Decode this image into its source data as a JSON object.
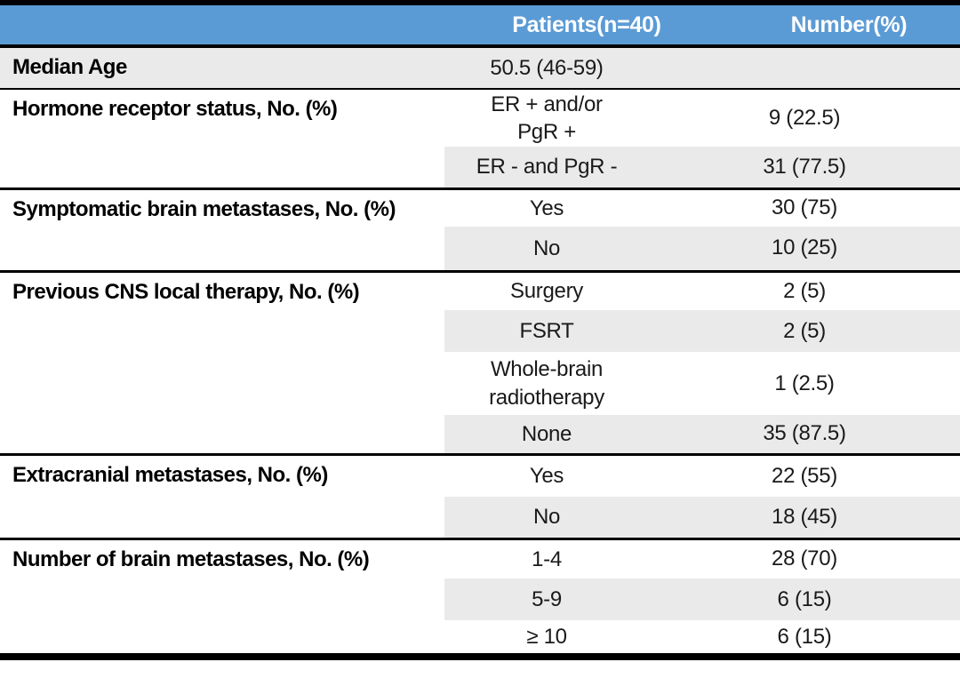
{
  "table": {
    "header": {
      "col1": "",
      "col2": "Patients(n=40)",
      "col3": "Number(%)"
    },
    "colors": {
      "header_bg": "#5B9BD5",
      "header_text": "#FFFFFF",
      "shade_bg": "#EAEAEA",
      "border": "#000000",
      "text": "#1A1A1A"
    },
    "sections": [
      {
        "label": "Median Age",
        "rows": [
          {
            "value": "50.5 (46-59)",
            "number": "",
            "shaded": true
          }
        ]
      },
      {
        "label": "Hormone receptor status, No. (%)",
        "rows": [
          {
            "value": "ER + and/or\nPgR +",
            "number": "9 (22.5)",
            "shaded": false
          },
          {
            "value": "ER - and PgR -",
            "number": "31 (77.5)",
            "shaded": true
          }
        ]
      },
      {
        "label": "Symptomatic brain metastases, No. (%)",
        "rows": [
          {
            "value": "Yes",
            "number": "30 (75)",
            "shaded": false
          },
          {
            "value": "No",
            "number": "10 (25)",
            "shaded": true
          }
        ]
      },
      {
        "label": "Previous CNS local therapy, No. (%)",
        "rows": [
          {
            "value": "Surgery",
            "number": "2 (5)",
            "shaded": false
          },
          {
            "value": "FSRT",
            "number": "2 (5)",
            "shaded": true
          },
          {
            "value": "Whole-brain\nradiotherapy",
            "number": "1 (2.5)",
            "shaded": false
          },
          {
            "value": "None",
            "number": "35 (87.5)",
            "shaded": true
          }
        ]
      },
      {
        "label": "Extracranial metastases, No. (%)",
        "rows": [
          {
            "value": "Yes",
            "number": "22 (55)",
            "shaded": false
          },
          {
            "value": "No",
            "number": "18 (45)",
            "shaded": true
          }
        ]
      },
      {
        "label": "Number of brain metastases, No. (%)",
        "rows": [
          {
            "value": "1-4",
            "number": "28 (70)",
            "shaded": false
          },
          {
            "value": "5-9",
            "number": "6 (15)",
            "shaded": true
          },
          {
            "value": "≥ 10",
            "number": "6 (15)",
            "shaded": false
          }
        ]
      }
    ]
  }
}
